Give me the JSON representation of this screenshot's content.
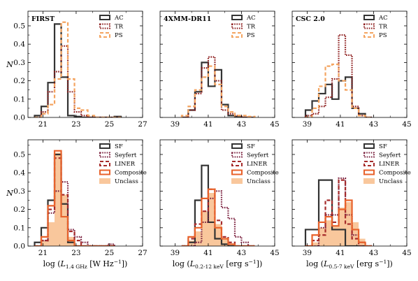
{
  "chart_data": [
    {
      "type": "histogram-step",
      "title": "FIRST",
      "ylabel": "N",
      "xlabel": "",
      "xlim": [
        20.1,
        27
      ],
      "ylim": [
        0,
        0.58
      ],
      "xticks": [
        "21",
        "23",
        "25",
        "27"
      ],
      "yticks": [
        "0.0",
        "0.1",
        "0.2",
        "0.3",
        "0.4",
        "0.5"
      ],
      "legend_position": "top-right",
      "bin_edges": [
        20.5,
        20.9,
        21.3,
        21.7,
        22.1,
        22.5,
        22.9,
        23.3,
        23.7,
        24.1,
        24.5,
        24.9,
        25.3,
        25.7
      ],
      "series": [
        {
          "name": "AC",
          "color": "#333333",
          "style": "solid",
          "values": [
            0.01,
            0.06,
            0.19,
            0.51,
            0.22,
            0.01,
            0.005,
            0,
            0,
            0,
            0,
            0,
            0.005
          ]
        },
        {
          "name": "TR",
          "color": "#8b1a1a",
          "style": "dotted",
          "values": [
            0,
            0.03,
            0.14,
            0.25,
            0.39,
            0.14,
            0.03,
            0.01,
            0,
            0,
            0,
            0,
            0
          ]
        },
        {
          "name": "PS",
          "color": "#f4a460",
          "style": "dashed",
          "values": [
            0,
            0.02,
            0.07,
            0.21,
            0.52,
            0.21,
            0.05,
            0.04,
            0.01,
            0,
            0,
            0,
            0
          ]
        }
      ]
    },
    {
      "type": "histogram-step",
      "title": "4XMM-DR11",
      "ylabel": "",
      "xlabel": "",
      "xlim": [
        38.1,
        45
      ],
      "ylim": [
        0,
        0.58
      ],
      "xticks": [
        "39",
        "41",
        "43",
        "45"
      ],
      "yticks": [],
      "legend_position": "top-right",
      "bin_edges": [
        39.4,
        39.8,
        40.2,
        40.6,
        41.0,
        41.4,
        41.8,
        42.2,
        42.6,
        43.0,
        43.4,
        43.8
      ],
      "series": [
        {
          "name": "AC",
          "color": "#333333",
          "style": "solid",
          "values": [
            0,
            0.04,
            0.14,
            0.3,
            0.17,
            0.26,
            0.07,
            0.01,
            0.005,
            0,
            0
          ]
        },
        {
          "name": "TR",
          "color": "#8b1a1a",
          "style": "dotted",
          "values": [
            0,
            0.04,
            0.13,
            0.27,
            0.33,
            0.2,
            0.04,
            0.02,
            0.01,
            0,
            0
          ]
        },
        {
          "name": "PS",
          "color": "#f4a460",
          "style": "dashed",
          "values": [
            0.01,
            0.06,
            0.15,
            0.22,
            0.28,
            0.18,
            0.06,
            0.03,
            0.01,
            0.01,
            0.005
          ]
        }
      ]
    },
    {
      "type": "histogram-step",
      "title": "CSC 2.0",
      "ylabel": "",
      "xlabel": "",
      "xlim": [
        38.1,
        45
      ],
      "ylim": [
        0,
        0.58
      ],
      "xticks": [
        "39",
        "41",
        "43",
        "45"
      ],
      "yticks": [],
      "legend_position": "top-right",
      "bin_edges": [
        38.9,
        39.3,
        39.7,
        40.1,
        40.5,
        40.9,
        41.3,
        41.7,
        42.1,
        42.5,
        42.9
      ],
      "series": [
        {
          "name": "AC",
          "color": "#333333",
          "style": "solid",
          "values": [
            0.04,
            0.09,
            0.13,
            0.18,
            0.1,
            0.2,
            0.22,
            0.05,
            0.02,
            0
          ]
        },
        {
          "name": "TR",
          "color": "#8b1a1a",
          "style": "dotted",
          "values": [
            0.01,
            0.02,
            0.06,
            0.11,
            0.21,
            0.45,
            0.34,
            0.06,
            0.01,
            0
          ]
        },
        {
          "name": "PS",
          "color": "#f4a460",
          "style": "dashed",
          "values": [
            0,
            0.05,
            0.17,
            0.28,
            0.29,
            0.2,
            0.15,
            0.05,
            0.01,
            0
          ]
        }
      ]
    },
    {
      "type": "histogram-step",
      "title": "",
      "ylabel": "N",
      "xlabel": "log (L_1.4 GHz [W Hz^-1])",
      "xlim": [
        20.1,
        27
      ],
      "ylim": [
        0,
        0.58
      ],
      "xticks": [
        "21",
        "23",
        "25",
        "27"
      ],
      "yticks": [
        "0.0",
        "0.1",
        "0.2",
        "0.3",
        "0.4",
        "0.5"
      ],
      "legend_position": "top-right",
      "bin_edges": [
        20.5,
        20.9,
        21.3,
        21.7,
        22.1,
        22.5,
        22.9,
        23.3,
        23.7,
        24.1,
        24.5,
        24.9,
        25.3
      ],
      "series": [
        {
          "name": "SF",
          "color": "#333333",
          "style": "solid",
          "values": [
            0.02,
            0.1,
            0.25,
            0.5,
            0.23,
            0.02,
            0,
            0,
            0,
            0,
            0,
            0
          ]
        },
        {
          "name": "Seyfert",
          "color": "#7a1f3d",
          "style": "dotted",
          "values": [
            0,
            0.03,
            0.18,
            0.3,
            0.35,
            0.09,
            0.05,
            0.02,
            0,
            0,
            0,
            0.01
          ]
        },
        {
          "name": "LINER",
          "color": "#a52a2a",
          "style": "dashed",
          "values": [
            0,
            0.03,
            0.2,
            0.48,
            0.28,
            0.08,
            0.03,
            0,
            0,
            0,
            0,
            0
          ]
        },
        {
          "name": "Composite",
          "color": "#e8622b",
          "style": "solid",
          "values": [
            0,
            0.05,
            0.22,
            0.52,
            0.16,
            0.03,
            0,
            0,
            0,
            0,
            0,
            0
          ]
        },
        {
          "name": "Unclass",
          "color": "#f9c79c",
          "style": "filled",
          "values": [
            0,
            0.03,
            0.13,
            0.51,
            0.28,
            0.05,
            0,
            0,
            0,
            0,
            0,
            0
          ]
        }
      ]
    },
    {
      "type": "histogram-step",
      "title": "",
      "ylabel": "",
      "xlabel": "log (L_0.2-12 keV [erg s^-1])",
      "xlim": [
        38.1,
        45
      ],
      "ylim": [
        0,
        0.58
      ],
      "xticks": [
        "39",
        "41",
        "43",
        "45"
      ],
      "yticks": [],
      "legend_position": "top-right",
      "bin_edges": [
        39.4,
        39.8,
        40.2,
        40.6,
        41.0,
        41.4,
        41.8,
        42.2,
        42.6,
        43.0,
        43.4,
        43.8
      ],
      "series": [
        {
          "name": "SF",
          "color": "#333333",
          "style": "solid",
          "values": [
            0,
            0.02,
            0.25,
            0.44,
            0.13,
            0.04,
            0.01,
            0,
            0,
            0,
            0
          ]
        },
        {
          "name": "Seyfert",
          "color": "#7a1f3d",
          "style": "dotted",
          "values": [
            0,
            0,
            0.02,
            0.13,
            0.26,
            0.3,
            0.21,
            0.15,
            0.05,
            0.02,
            0
          ]
        },
        {
          "name": "LINER",
          "color": "#a52a2a",
          "style": "dashed",
          "values": [
            0,
            0.04,
            0.12,
            0.19,
            0.31,
            0.14,
            0.05,
            0.02,
            0,
            0,
            0
          ]
        },
        {
          "name": "Composite",
          "color": "#e8622b",
          "style": "solid",
          "values": [
            0,
            0.05,
            0.1,
            0.26,
            0.31,
            0.1,
            0.04,
            0.01,
            0,
            0,
            0
          ]
        },
        {
          "name": "Unclass",
          "color": "#f9c79c",
          "style": "filled",
          "values": [
            0,
            0.03,
            0.08,
            0.19,
            0.29,
            0.12,
            0.04,
            0.01,
            0,
            0,
            0
          ]
        }
      ]
    },
    {
      "type": "histogram-step",
      "title": "",
      "ylabel": "",
      "xlabel": "log (L_0.5-7 keV [erg s^-1])",
      "xlim": [
        38.1,
        45
      ],
      "ylim": [
        0,
        0.58
      ],
      "xticks": [
        "39",
        "41",
        "43",
        "45"
      ],
      "yticks": [],
      "legend_position": "top-right",
      "bin_edges": [
        38.9,
        39.3,
        39.7,
        40.1,
        40.5,
        40.9,
        41.3,
        41.7,
        42.1,
        42.5,
        42.9
      ],
      "series": [
        {
          "name": "SF",
          "color": "#333333",
          "style": "solid",
          "values": [
            0.09,
            0.09,
            0.36,
            0.36,
            0.09,
            0.09,
            0,
            0,
            0,
            0
          ]
        },
        {
          "name": "Seyfert",
          "color": "#7a1f3d",
          "style": "dotted",
          "values": [
            0,
            0,
            0.1,
            0.17,
            0.17,
            0.37,
            0.17,
            0.06,
            0.02,
            0
          ]
        },
        {
          "name": "LINER",
          "color": "#a52a2a",
          "style": "dashed",
          "values": [
            0,
            0.03,
            0.06,
            0.25,
            0.13,
            0.36,
            0.12,
            0.04,
            0,
            0
          ]
        },
        {
          "name": "Composite",
          "color": "#e8622b",
          "style": "solid",
          "values": [
            0,
            0.06,
            0.13,
            0.16,
            0.11,
            0.2,
            0.25,
            0.09,
            0.02,
            0
          ]
        },
        {
          "name": "Unclass",
          "color": "#f9c79c",
          "style": "filled",
          "values": [
            0,
            0.02,
            0.1,
            0.14,
            0.11,
            0.21,
            0.24,
            0.13,
            0.04,
            0
          ]
        }
      ]
    }
  ]
}
